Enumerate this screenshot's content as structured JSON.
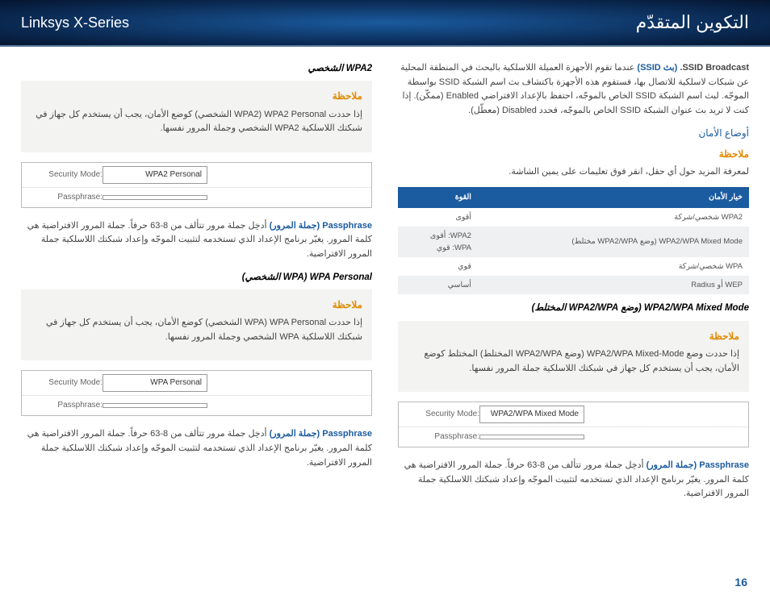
{
  "header": {
    "left": "Linksys X-Series",
    "right": "التكوين المتقدّم"
  },
  "page_number": "16",
  "right_col": {
    "intro": {
      "ssid_broadcast_label": "SSID Broadcast.",
      "ssid_broadcast_paren": "(بث SSID)",
      "intro_text": "  عندما تقوم الأجهزة العميلة اللاسلكية بالبحث في المنطقة المحلية عن شبكات لاسلكية للاتصال بها، فستقوم هذه الأجهزة باكتشاف بث اسم الشبكة SSID بواسطة الموجّه. لبث اسم الشبكة SSID الخاص بالموجّه، احتفظ بالإعداد الافتراضي Enabled (ممكّن). إذا كنت لا تريد بث عنوان الشبكة SSID الخاص بالموجّه، فحدد Disabled (معطّل)."
    },
    "security_modes_heading": "أوضاع الأمان",
    "note1_heading": "ملاحظة",
    "note1_text": "لمعرفة المزيد حول أي حقل، انقر فوق تعليمات على يمين الشاشة.",
    "table": {
      "col1": "خيار الأمان",
      "col2": "القوة",
      "rows": [
        {
          "opt": "WPA2 شخصي/شركة",
          "str": "أقوى"
        },
        {
          "opt": "WPA2/WPA Mixed Mode (وضع WPA2/WPA مختلط)",
          "str": "WPA2: أقوى\nWPA: قوي"
        },
        {
          "opt": "WPA شخصي/شركة",
          "str": "قوي"
        },
        {
          "opt": "WEP أو Radius",
          "str": "أساسي"
        }
      ]
    },
    "mixed_heading": "WPA2/WPA Mixed Mode (وضع WPA2/WPA المختلط)",
    "note2_heading": "ملاحظة",
    "note2_text": "إذا حددت وضع WPA2/WPA Mixed-Mode (وضع WPA2/WPA المختلط) المختلط كوضع الأمان، يجب أن يستخدم كل جهاز في شبكتك اللاسلكية جملة المرور نفسها.",
    "config": {
      "security_mode_label": "Security Mode:",
      "security_mode_value": "WPA2/WPA Mixed Mode",
      "passphrase_label": "Passphrase:",
      "passphrase_value": ""
    },
    "passphrase_label": "Passphrase (جملة المرور)",
    "passphrase_text": "  أدخِل جملة مرور تتألف من 8-63 حرفاً. جملة المرور الافتراضية هي كلمة المرور. يغيّر برنامج الإعداد الذي تستخدمه لتثبيت الموجّه وإعداد شبكتك اللاسلكية جملة المرور الافتراضية."
  },
  "left_col": {
    "wpa2_heading": "WPA2 الشخصي",
    "note1_heading": "ملاحظة",
    "note1_text": "إذا حددت WPA2 Personal (WPA2 الشخصي) كوضع الأمان، يجب أن يستخدم كل جهاز في شبكتك اللاسلكية WPA2 الشخصي وجملة المرور نفسها.",
    "config1": {
      "security_mode_label": "Security Mode:",
      "security_mode_value": "WPA2 Personal",
      "passphrase_label": "Passphrase:",
      "passphrase_value": ""
    },
    "pass1_label": "Passphrase (جملة المرور)",
    "pass1_text": "  أدخِل جملة مرور تتألف من 8-63 حرفاً. جملة المرور الافتراضية هي كلمة المرور. يغيّر برنامج الإعداد الذي تستخدمه لتثبيت الموجّه وإعداد شبكتك اللاسلكية جملة المرور الافتراضية.",
    "wpa_heading": "WPA Personal (WPA الشخصي)",
    "note2_heading": "ملاحظة",
    "note2_text": "إذا حددت WPA Personal (WPA الشخصي) كوضع الأمان، يجب أن يستخدم كل جهاز في شبكتك اللاسلكية WPA الشخصي وجملة المرور نفسها.",
    "config2": {
      "security_mode_label": "Security Mode:",
      "security_mode_value": "WPA Personal",
      "passphrase_label": "Passphrase:",
      "passphrase_value": ""
    },
    "pass2_label": "Passphrase (جملة المرور)",
    "pass2_text": "  أدخِل جملة مرور تتألف من 8-63 حرفاً. جملة المرور الافتراضية هي كلمة المرور. يغيّر برنامج الإعداد الذي تستخدمه لتثبيت الموجّه وإعداد شبكتك اللاسلكية جملة المرور الافتراضية."
  }
}
